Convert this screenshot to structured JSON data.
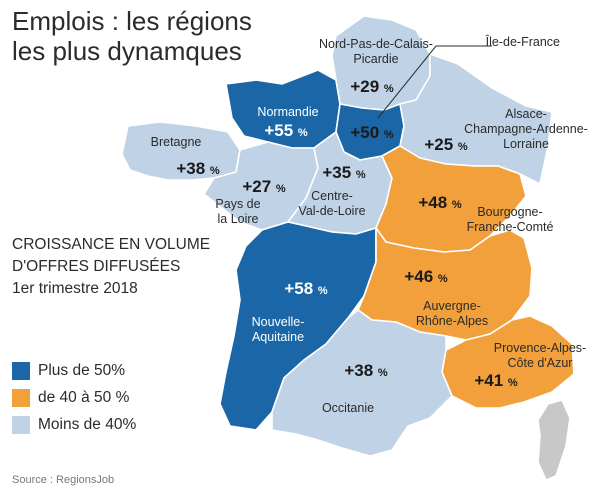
{
  "title": {
    "line1": "Emplois : les régions",
    "line2": "les plus dynamques"
  },
  "subtitle": {
    "line1": "CROISSANCE EN VOLUME",
    "line2": "D'OFFRES DIFFUSÉES",
    "line3": "1er trimestre 2018"
  },
  "colors": {
    "high": "#1a66a6",
    "mid": "#f2a03b",
    "low": "#bfd2e6",
    "corsica": "#c8c8c8"
  },
  "legend": [
    {
      "label": "Plus de 50%",
      "color": "#1a66a6"
    },
    {
      "label": "de 40 à 50 %",
      "color": "#f2a03b"
    },
    {
      "label": "Moins de 40%",
      "color": "#bfd2e6"
    }
  ],
  "regions": [
    {
      "id": "normandie",
      "name_lines": [
        "Normandie"
      ],
      "value": "+55",
      "unit": "%",
      "category": "high"
    },
    {
      "id": "ile-de-france",
      "name_lines": [
        "Île-de-France"
      ],
      "value": "+50",
      "unit": "%",
      "category": "high"
    },
    {
      "id": "nouvelle-aquitaine",
      "name_lines": [
        "Nouvelle-",
        "Aquitaine"
      ],
      "value": "+58",
      "unit": "%",
      "category": "high"
    },
    {
      "id": "bourgogne-franche-comte",
      "name_lines": [
        "Bourgogne-",
        "Franche-Comté"
      ],
      "value": "+48",
      "unit": "%",
      "category": "mid"
    },
    {
      "id": "auvergne-rhone-alpes",
      "name_lines": [
        "Auvergne-",
        "Rhône-Alpes"
      ],
      "value": "+46",
      "unit": "%",
      "category": "mid"
    },
    {
      "id": "paca",
      "name_lines": [
        "Provence-Alpes-",
        "Côte d'Azur"
      ],
      "value": "+41",
      "unit": "%",
      "category": "mid"
    },
    {
      "id": "hauts-de-france",
      "name_lines": [
        "Nord-Pas-de-Calais-",
        "Picardie"
      ],
      "value": "+29",
      "unit": "%",
      "category": "low"
    },
    {
      "id": "grand-est",
      "name_lines": [
        "Alsace-",
        "Champagne-Ardenne-",
        "Lorraine"
      ],
      "value": "+25",
      "unit": "%",
      "category": "low"
    },
    {
      "id": "bretagne",
      "name_lines": [
        "Bretagne"
      ],
      "value": "+38",
      "unit": "%",
      "category": "low"
    },
    {
      "id": "pays-de-la-loire",
      "name_lines": [
        "Pays de",
        "la Loire"
      ],
      "value": "+27",
      "unit": "%",
      "category": "low"
    },
    {
      "id": "centre-val-de-loire",
      "name_lines": [
        "Centre-",
        "Val-de-Loire"
      ],
      "value": "+35",
      "unit": "%",
      "category": "low"
    },
    {
      "id": "occitanie",
      "name_lines": [
        "Occitanie"
      ],
      "value": "+38",
      "unit": "%",
      "category": "low"
    }
  ],
  "source": "Source : RegionsJob"
}
